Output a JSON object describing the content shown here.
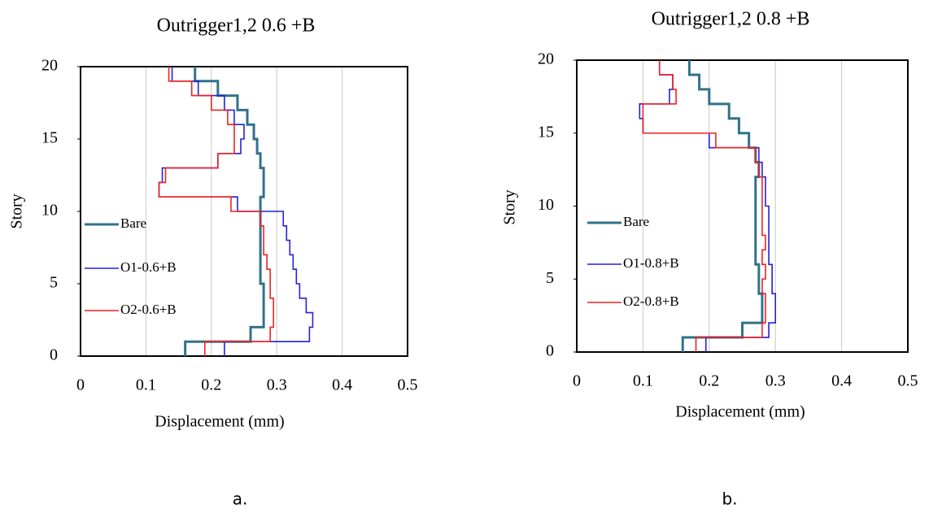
{
  "chart_data": [
    {
      "type": "line",
      "step": true,
      "title": "Outrigger1,2 0.6 +B",
      "caption": "a.",
      "xlabel": "Displacement (mm)",
      "ylabel": "Story",
      "xlim": [
        0,
        0.5
      ],
      "xticks": [
        0,
        0.1,
        0.2,
        0.3,
        0.4,
        0.5
      ],
      "ylim": [
        0,
        20
      ],
      "yticks": [
        0,
        5,
        10,
        15,
        20
      ],
      "grid": true,
      "y": [
        1,
        2,
        3,
        4,
        5,
        6,
        7,
        8,
        9,
        10,
        11,
        12,
        13,
        14,
        15,
        16,
        17,
        18,
        19,
        20
      ],
      "series": [
        {
          "name": "Bare",
          "color": "#31728a",
          "values": [
            0.16,
            0.26,
            0.28,
            0.28,
            0.28,
            0.275,
            0.275,
            0.275,
            0.275,
            0.275,
            0.275,
            0.28,
            0.28,
            0.275,
            0.27,
            0.265,
            0.255,
            0.24,
            0.21,
            0.175
          ]
        },
        {
          "name": "O1-0.6+B",
          "color": "#2222dd",
          "values": [
            0.22,
            0.35,
            0.355,
            0.345,
            0.335,
            0.33,
            0.325,
            0.32,
            0.315,
            0.31,
            0.24,
            0.12,
            0.125,
            0.21,
            0.245,
            0.25,
            0.235,
            0.22,
            0.18,
            0.14
          ]
        },
        {
          "name": "O2-0.6+B",
          "color": "#ee2222",
          "values": [
            0.19,
            0.29,
            0.295,
            0.295,
            0.29,
            0.29,
            0.285,
            0.28,
            0.28,
            0.275,
            0.23,
            0.12,
            0.13,
            0.21,
            0.235,
            0.235,
            0.225,
            0.2,
            0.17,
            0.135
          ]
        }
      ]
    },
    {
      "type": "line",
      "step": true,
      "title": "Outrigger1,2 0.8 +B",
      "caption": "b.",
      "xlabel": "Displacement (mm)",
      "ylabel": "Story",
      "xlim": [
        0,
        0.5
      ],
      "xticks": [
        0,
        0.1,
        0.2,
        0.3,
        0.4,
        0.5
      ],
      "ylim": [
        0,
        20
      ],
      "yticks": [
        0,
        5,
        10,
        15,
        20
      ],
      "grid": true,
      "y": [
        1,
        2,
        3,
        4,
        5,
        6,
        7,
        8,
        9,
        10,
        11,
        12,
        13,
        14,
        15,
        16,
        17,
        18,
        19,
        20
      ],
      "series": [
        {
          "name": "Bare",
          "color": "#31728a",
          "values": [
            0.16,
            0.25,
            0.28,
            0.28,
            0.275,
            0.275,
            0.27,
            0.27,
            0.27,
            0.27,
            0.27,
            0.27,
            0.275,
            0.27,
            0.26,
            0.245,
            0.23,
            0.2,
            0.185,
            0.17
          ]
        },
        {
          "name": "O1-0.8+B",
          "color": "#2222dd",
          "values": [
            0.195,
            0.29,
            0.3,
            0.3,
            0.295,
            0.295,
            0.29,
            0.29,
            0.29,
            0.29,
            0.285,
            0.285,
            0.28,
            0.275,
            0.2,
            0.1,
            0.095,
            0.14,
            0.145,
            0.125
          ]
        },
        {
          "name": "O2-0.8+B",
          "color": "#ee2222",
          "values": [
            0.18,
            0.28,
            0.285,
            0.285,
            0.28,
            0.285,
            0.28,
            0.285,
            0.28,
            0.28,
            0.28,
            0.28,
            0.275,
            0.27,
            0.21,
            0.1,
            0.1,
            0.15,
            0.145,
            0.125
          ]
        }
      ]
    }
  ]
}
